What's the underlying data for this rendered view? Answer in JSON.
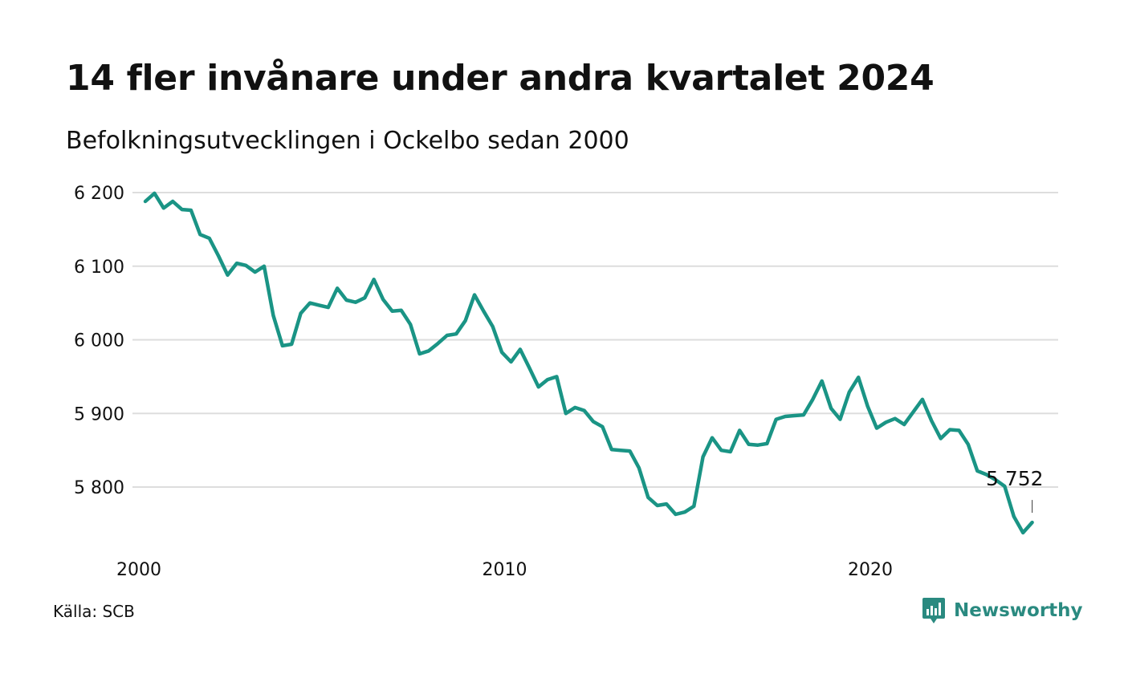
{
  "header": {
    "title": "14 fler invånare under andra kvartalet 2024",
    "subtitle": "Befolkningsutvecklingen i Ockelbo sedan 2000"
  },
  "footer": {
    "source": "Källa: SCB",
    "brand": "Newsworthy",
    "brand_icon": "newsworthy-logo-icon"
  },
  "colors": {
    "line": "#1a9485",
    "grid": "#dddddd",
    "text": "#111111",
    "brand": "#2a8a80"
  },
  "chart_data": {
    "type": "line",
    "title": "14 fler invånare under andra kvartalet 2024",
    "subtitle": "Befolkningsutvecklingen i Ockelbo sedan 2000",
    "xlabel": "",
    "ylabel": "",
    "x_ticks": [
      "2000",
      "2010",
      "2020"
    ],
    "y_ticks": [
      "5 800",
      "5 900",
      "6 000",
      "6 100",
      "6 200"
    ],
    "ylim": [
      5730,
      6215
    ],
    "grid": "horizontal",
    "x": [
      "2000K1",
      "2000K2",
      "2000K3",
      "2000K4",
      "2001K1",
      "2001K2",
      "2001K3",
      "2001K4",
      "2002K1",
      "2002K2",
      "2002K3",
      "2002K4",
      "2003K1",
      "2003K2",
      "2003K3",
      "2003K4",
      "2004K1",
      "2004K2",
      "2004K3",
      "2004K4",
      "2005K1",
      "2005K2",
      "2005K3",
      "2005K4",
      "2006K1",
      "2006K2",
      "2006K3",
      "2006K4",
      "2007K1",
      "2007K2",
      "2007K3",
      "2007K4",
      "2008K1",
      "2008K2",
      "2008K3",
      "2008K4",
      "2009K1",
      "2009K2",
      "2009K3",
      "2009K4",
      "2010K1",
      "2010K2",
      "2010K3",
      "2010K4",
      "2011K1",
      "2011K2",
      "2011K3",
      "2011K4",
      "2012K1",
      "2012K2",
      "2012K3",
      "2012K4",
      "2013K1",
      "2013K2",
      "2013K3",
      "2013K4",
      "2014K1",
      "2014K2",
      "2014K3",
      "2014K4",
      "2015K1",
      "2015K2",
      "2015K3",
      "2015K4",
      "2016K1",
      "2016K2",
      "2016K3",
      "2016K4",
      "2017K1",
      "2017K2",
      "2017K3",
      "2017K4",
      "2018K1",
      "2018K2",
      "2018K3",
      "2018K4",
      "2019K1",
      "2019K2",
      "2019K3",
      "2019K4",
      "2020K1",
      "2020K2",
      "2020K3",
      "2020K4",
      "2021K1",
      "2021K2",
      "2021K3",
      "2021K4",
      "2022K1",
      "2022K2",
      "2022K3",
      "2022K4",
      "2023K1",
      "2023K2",
      "2023K3",
      "2023K4",
      "2024K1",
      "2024K2"
    ],
    "series": [
      {
        "values": [
          6188,
          6199,
          6179,
          6188,
          6177,
          6176,
          6143,
          6138,
          6114,
          6088,
          6104,
          6101,
          6092,
          6100,
          6033,
          5992,
          5994,
          6036,
          6050,
          6047,
          6044,
          6070,
          6054,
          6051,
          6057,
          6082,
          6055,
          6039,
          6040,
          6021,
          5981,
          5985,
          5995,
          6006,
          6008,
          6026,
          6061,
          6039,
          6018,
          5983,
          5970,
          5987,
          5962,
          5936,
          5946,
          5950,
          5900,
          5908,
          5904,
          5889,
          5882,
          5851,
          5850,
          5849,
          5826,
          5786,
          5775,
          5777,
          5763,
          5766,
          5774,
          5841,
          5867,
          5850,
          5848,
          5877,
          5858,
          5857,
          5859,
          5892,
          5896,
          5897,
          5898,
          5919,
          5944,
          5907,
          5892,
          5929,
          5949,
          5910,
          5880,
          5888,
          5893,
          5885,
          5902,
          5919,
          5890,
          5866,
          5878,
          5877,
          5858,
          5822,
          5817,
          5810,
          5801,
          5760,
          5738,
          5752
        ]
      }
    ],
    "annotation": {
      "label": "5 752",
      "value": 5752,
      "at": "2024K2"
    }
  }
}
